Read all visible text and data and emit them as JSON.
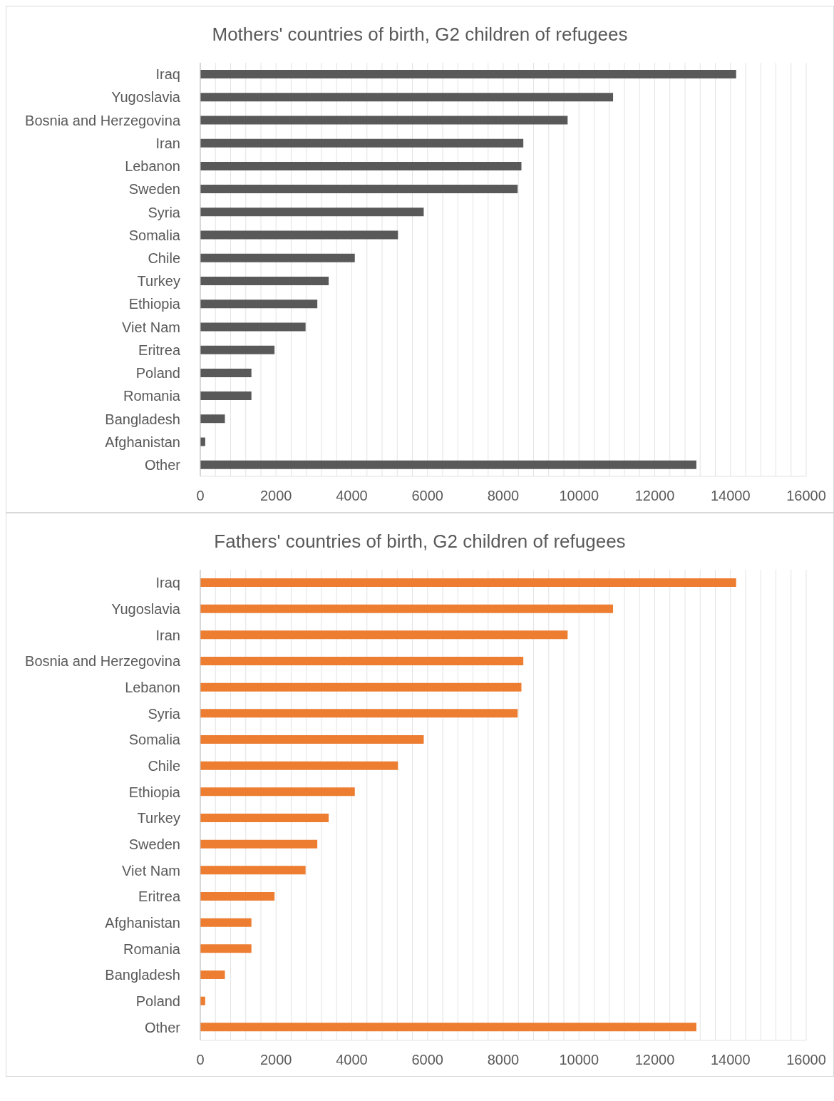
{
  "chart_data": [
    {
      "type": "bar",
      "orientation": "horizontal",
      "title": "Mothers' countries of birth, G2 children of refugees",
      "categories": [
        "Iraq",
        "Yugoslavia",
        "Bosnia and Herzegovina",
        "Iran",
        "Lebanon",
        "Sweden",
        "Syria",
        "Somalia",
        "Chile",
        "Turkey",
        "Ethiopia",
        "Viet Nam",
        "Eritrea",
        "Poland",
        "Romania",
        "Bangladesh",
        "Afghanistan",
        "Other"
      ],
      "values": [
        14150,
        10900,
        9700,
        8530,
        8480,
        8380,
        5900,
        5220,
        4080,
        3390,
        3090,
        2780,
        1960,
        1350,
        1350,
        650,
        130,
        13100
      ],
      "color": "#595959",
      "xlim": [
        0,
        16000
      ],
      "xticks": [
        0,
        {
          "value": 400,
          "label": null
        },
        {
          "value": 800,
          "label": null
        },
        {
          "value": 1200,
          "label": null
        },
        {
          "value": 1600,
          "label": null
        },
        2000,
        {
          "value": 2400,
          "label": null
        },
        {
          "value": 2800,
          "label": null
        },
        {
          "value": 3200,
          "label": null
        },
        {
          "value": 3600,
          "label": null
        },
        4000,
        {
          "value": 4400,
          "label": null
        },
        {
          "value": 4800,
          "label": null
        },
        {
          "value": 5200,
          "label": null
        },
        {
          "value": 5600,
          "label": null
        },
        6000,
        {
          "value": 6400,
          "label": null
        },
        {
          "value": 6800,
          "label": null
        },
        {
          "value": 7200,
          "label": null
        },
        {
          "value": 7600,
          "label": null
        },
        8000,
        {
          "value": 8400,
          "label": null
        },
        {
          "value": 8800,
          "label": null
        },
        {
          "value": 9200,
          "label": null
        },
        {
          "value": 9600,
          "label": null
        },
        10000,
        {
          "value": 10400,
          "label": null
        },
        {
          "value": 10800,
          "label": null
        },
        {
          "value": 11200,
          "label": null
        },
        {
          "value": 11600,
          "label": null
        },
        12000,
        {
          "value": 12400,
          "label": null
        },
        {
          "value": 12800,
          "label": null
        },
        {
          "value": 13200,
          "label": null
        },
        {
          "value": 13600,
          "label": null
        },
        14000,
        {
          "value": 14400,
          "label": null
        },
        {
          "value": 14800,
          "label": null
        },
        {
          "value": 15200,
          "label": null
        },
        {
          "value": 15600,
          "label": null
        },
        16000
      ],
      "grid": "x"
    },
    {
      "type": "bar",
      "orientation": "horizontal",
      "title": "Fathers' countries of birth, G2 children of refugees",
      "categories": [
        "Iraq",
        "Yugoslavia",
        "Iran",
        "Bosnia and Herzegovina",
        "Lebanon",
        "Syria",
        "Somalia",
        "Chile",
        "Ethiopia",
        "Turkey",
        "Sweden",
        "Viet Nam",
        "Eritrea",
        "Afghanistan",
        "Romania",
        "Bangladesh",
        "Poland",
        "Other"
      ],
      "values": [
        14150,
        10900,
        9700,
        8530,
        8480,
        8380,
        5900,
        5220,
        4080,
        3390,
        3090,
        2780,
        1960,
        1350,
        1350,
        650,
        130,
        13100
      ],
      "color": "#ed7d31",
      "xlim": [
        0,
        16000
      ],
      "xticks": [
        0,
        {
          "value": 400,
          "label": null
        },
        {
          "value": 800,
          "label": null
        },
        {
          "value": 1200,
          "label": null
        },
        {
          "value": 1600,
          "label": null
        },
        2000,
        {
          "value": 2400,
          "label": null
        },
        {
          "value": 2800,
          "label": null
        },
        {
          "value": 3200,
          "label": null
        },
        {
          "value": 3600,
          "label": null
        },
        4000,
        {
          "value": 4400,
          "label": null
        },
        {
          "value": 4800,
          "label": null
        },
        {
          "value": 5200,
          "label": null
        },
        {
          "value": 5600,
          "label": null
        },
        6000,
        {
          "value": 6400,
          "label": null
        },
        {
          "value": 6800,
          "label": null
        },
        {
          "value": 7200,
          "label": null
        },
        {
          "value": 7600,
          "label": null
        },
        8000,
        {
          "value": 8400,
          "label": null
        },
        {
          "value": 8800,
          "label": null
        },
        {
          "value": 9200,
          "label": null
        },
        {
          "value": 9600,
          "label": null
        },
        10000,
        {
          "value": 10400,
          "label": null
        },
        {
          "value": 10800,
          "label": null
        },
        {
          "value": 11200,
          "label": null
        },
        {
          "value": 11600,
          "label": null
        },
        12000,
        {
          "value": 12400,
          "label": null
        },
        {
          "value": 12800,
          "label": null
        },
        {
          "value": 13200,
          "label": null
        },
        {
          "value": 13600,
          "label": null
        },
        14000,
        {
          "value": 14400,
          "label": null
        },
        {
          "value": 14800,
          "label": null
        },
        {
          "value": 15200,
          "label": null
        },
        {
          "value": 15600,
          "label": null
        },
        16000
      ],
      "grid": "x"
    }
  ]
}
